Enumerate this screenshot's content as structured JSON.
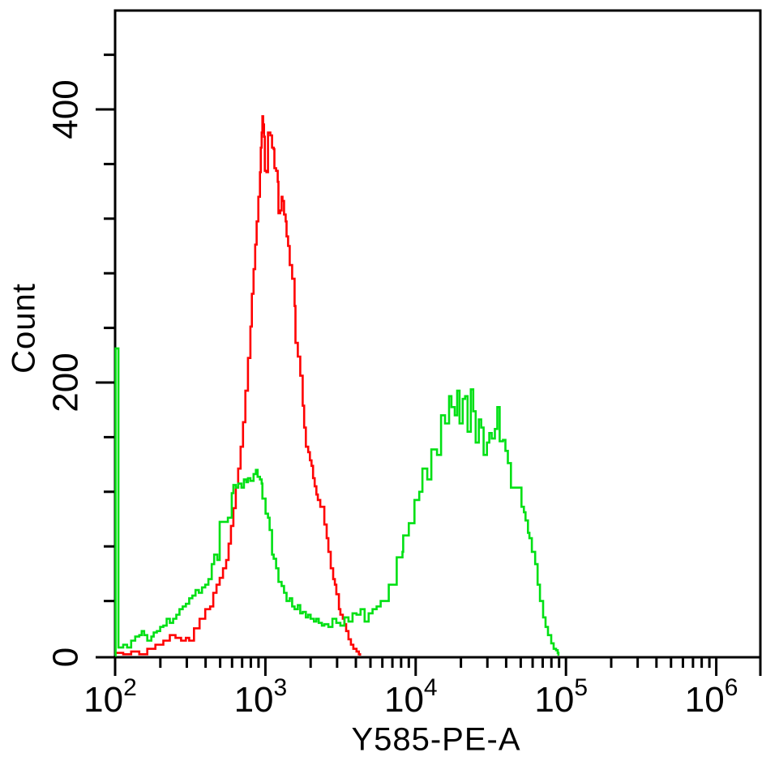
{
  "canvas": {
    "background": "#ffffff",
    "axis_color": "#000000"
  },
  "chart_data": {
    "type": "line",
    "subtype": "flow-cytometry-histogram-overlay",
    "title": "",
    "xlabel": "Y585-PE-A",
    "ylabel": "Count",
    "x_scale": "log10",
    "x_range_log": [
      2,
      6.3
    ],
    "ylim": [
      0,
      472
    ],
    "grid": false,
    "legend": "none",
    "x_major_ticks": [
      {
        "log": 2,
        "base": "10",
        "exp": "2"
      },
      {
        "log": 3,
        "base": "10",
        "exp": "3"
      },
      {
        "log": 4,
        "base": "10",
        "exp": "4"
      },
      {
        "log": 5,
        "base": "10",
        "exp": "5"
      },
      {
        "log": 6,
        "base": "10",
        "exp": "6"
      }
    ],
    "x_minor_ticks_per_decade": [
      2,
      3,
      4,
      5,
      6,
      7,
      8,
      9
    ],
    "y_major_ticks": [
      {
        "count": 0,
        "label": "0"
      },
      {
        "count": 200,
        "label": "200"
      },
      {
        "count": 400,
        "label": "400"
      }
    ],
    "y_minor_step": 40,
    "y_minor_max": 440,
    "series": [
      {
        "name": "red",
        "color": "#ff0000",
        "points": [
          [
            2.0,
            2
          ],
          [
            2.054,
            1
          ],
          [
            2.107,
            3
          ],
          [
            2.161,
            1
          ],
          [
            2.214,
            5
          ],
          [
            2.268,
            8
          ],
          [
            2.321,
            11
          ],
          [
            2.364,
            15
          ],
          [
            2.402,
            13
          ],
          [
            2.439,
            11
          ],
          [
            2.471,
            13
          ],
          [
            2.493,
            11
          ],
          [
            2.525,
            20
          ],
          [
            2.562,
            27
          ],
          [
            2.6,
            34
          ],
          [
            2.632,
            36
          ],
          [
            2.653,
            46
          ],
          [
            2.675,
            52
          ],
          [
            2.696,
            57
          ],
          [
            2.718,
            64
          ],
          [
            2.739,
            70
          ],
          [
            2.755,
            82
          ],
          [
            2.771,
            95
          ],
          [
            2.787,
            108
          ],
          [
            2.803,
            123
          ],
          [
            2.819,
            137
          ],
          [
            2.835,
            153
          ],
          [
            2.851,
            171
          ],
          [
            2.867,
            194
          ],
          [
            2.884,
            218
          ],
          [
            2.9,
            241
          ],
          [
            2.91,
            265
          ],
          [
            2.921,
            283
          ],
          [
            2.932,
            301
          ],
          [
            2.942,
            318
          ],
          [
            2.953,
            336
          ],
          [
            2.964,
            354
          ],
          [
            2.969,
            372
          ],
          [
            2.975,
            383
          ],
          [
            2.98,
            395
          ],
          [
            2.985,
            389
          ],
          [
            2.991,
            380
          ],
          [
            2.996,
            355
          ],
          [
            3.007,
            354
          ],
          [
            3.017,
            383
          ],
          [
            3.033,
            381
          ],
          [
            3.044,
            372
          ],
          [
            3.055,
            371
          ],
          [
            3.06,
            357
          ],
          [
            3.071,
            355
          ],
          [
            3.082,
            347
          ],
          [
            3.087,
            324
          ],
          [
            3.098,
            326
          ],
          [
            3.108,
            336
          ],
          [
            3.114,
            333
          ],
          [
            3.124,
            323
          ],
          [
            3.135,
            318
          ],
          [
            3.141,
            307
          ],
          [
            3.151,
            300
          ],
          [
            3.162,
            286
          ],
          [
            3.178,
            276
          ],
          [
            3.194,
            256
          ],
          [
            3.2,
            229
          ],
          [
            3.216,
            219
          ],
          [
            3.232,
            205
          ],
          [
            3.248,
            183
          ],
          [
            3.258,
            167
          ],
          [
            3.269,
            153
          ],
          [
            3.285,
            149
          ],
          [
            3.296,
            143
          ],
          [
            3.307,
            139
          ],
          [
            3.317,
            130
          ],
          [
            3.328,
            124
          ],
          [
            3.339,
            118
          ],
          [
            3.349,
            114
          ],
          [
            3.365,
            109
          ],
          [
            3.392,
            96
          ],
          [
            3.408,
            86
          ],
          [
            3.419,
            76
          ],
          [
            3.435,
            64
          ],
          [
            3.451,
            56
          ],
          [
            3.462,
            52
          ],
          [
            3.472,
            45
          ],
          [
            3.489,
            34
          ],
          [
            3.499,
            30
          ],
          [
            3.515,
            27
          ],
          [
            3.526,
            23
          ],
          [
            3.537,
            18
          ],
          [
            3.553,
            12
          ],
          [
            3.569,
            8
          ],
          [
            3.585,
            5
          ],
          [
            3.606,
            3
          ],
          [
            3.622,
            1
          ],
          [
            3.63,
            0
          ]
        ]
      },
      {
        "name": "green",
        "color": "#00e014",
        "points": [
          [
            2.0,
            0
          ],
          [
            2.003,
            225
          ],
          [
            2.016,
            225
          ],
          [
            2.022,
            6
          ],
          [
            2.027,
            6
          ],
          [
            2.054,
            8
          ],
          [
            2.08,
            6
          ],
          [
            2.107,
            11
          ],
          [
            2.134,
            14
          ],
          [
            2.161,
            15
          ],
          [
            2.177,
            18
          ],
          [
            2.193,
            15
          ],
          [
            2.214,
            11
          ],
          [
            2.241,
            14
          ],
          [
            2.257,
            17
          ],
          [
            2.278,
            18
          ],
          [
            2.3,
            21
          ],
          [
            2.321,
            22
          ],
          [
            2.343,
            27
          ],
          [
            2.364,
            24
          ],
          [
            2.386,
            27
          ],
          [
            2.407,
            30
          ],
          [
            2.428,
            34
          ],
          [
            2.45,
            36
          ],
          [
            2.471,
            38
          ],
          [
            2.493,
            42
          ],
          [
            2.514,
            44
          ],
          [
            2.535,
            48
          ],
          [
            2.557,
            46
          ],
          [
            2.578,
            50
          ],
          [
            2.6,
            52
          ],
          [
            2.621,
            56
          ],
          [
            2.643,
            67
          ],
          [
            2.659,
            74
          ],
          [
            2.68,
            70
          ],
          [
            2.696,
            98
          ],
          [
            2.712,
            98
          ],
          [
            2.734,
            98
          ],
          [
            2.75,
            101
          ],
          [
            2.766,
            101
          ],
          [
            2.776,
            119
          ],
          [
            2.787,
            125
          ],
          [
            2.803,
            123
          ],
          [
            2.819,
            126
          ],
          [
            2.841,
            123
          ],
          [
            2.857,
            129
          ],
          [
            2.873,
            127
          ],
          [
            2.884,
            130
          ],
          [
            2.9,
            128
          ],
          [
            2.921,
            133
          ],
          [
            2.937,
            136
          ],
          [
            2.948,
            131
          ],
          [
            2.964,
            129
          ],
          [
            2.975,
            126
          ],
          [
            2.98,
            115
          ],
          [
            3.001,
            104
          ],
          [
            3.017,
            101
          ],
          [
            3.028,
            92
          ],
          [
            3.044,
            74
          ],
          [
            3.055,
            71
          ],
          [
            3.071,
            64
          ],
          [
            3.087,
            54
          ],
          [
            3.108,
            51
          ],
          [
            3.124,
            46
          ],
          [
            3.141,
            40
          ],
          [
            3.162,
            42
          ],
          [
            3.178,
            36
          ],
          [
            3.194,
            34
          ],
          [
            3.216,
            37
          ],
          [
            3.232,
            31
          ],
          [
            3.248,
            32
          ],
          [
            3.269,
            28
          ],
          [
            3.285,
            30
          ],
          [
            3.301,
            27
          ],
          [
            3.323,
            25
          ],
          [
            3.339,
            27
          ],
          [
            3.355,
            24
          ],
          [
            3.376,
            22
          ],
          [
            3.392,
            23
          ],
          [
            3.419,
            21
          ],
          [
            3.446,
            27
          ],
          [
            3.472,
            24
          ],
          [
            3.499,
            22
          ],
          [
            3.526,
            28
          ],
          [
            3.553,
            25
          ],
          [
            3.58,
            31
          ],
          [
            3.606,
            30
          ],
          [
            3.633,
            34
          ],
          [
            3.66,
            25
          ],
          [
            3.687,
            31
          ],
          [
            3.713,
            34
          ],
          [
            3.74,
            36
          ],
          [
            3.767,
            40
          ],
          [
            3.821,
            52
          ],
          [
            3.874,
            72
          ],
          [
            3.912,
            76
          ],
          [
            3.917,
            88
          ],
          [
            3.954,
            97
          ],
          [
            3.992,
            114
          ],
          [
            4.024,
            120
          ],
          [
            4.045,
            137
          ],
          [
            4.077,
            129
          ],
          [
            4.104,
            151
          ],
          [
            4.142,
            147
          ],
          [
            4.169,
            176
          ],
          [
            4.195,
            170
          ],
          [
            4.222,
            190
          ],
          [
            4.238,
            182
          ],
          [
            4.26,
            176
          ],
          [
            4.276,
            194
          ],
          [
            4.292,
            170
          ],
          [
            4.313,
            188
          ],
          [
            4.329,
            190
          ],
          [
            4.345,
            164
          ],
          [
            4.367,
            195
          ],
          [
            4.383,
            179
          ],
          [
            4.399,
            156
          ],
          [
            4.42,
            173
          ],
          [
            4.436,
            167
          ],
          [
            4.452,
            147
          ],
          [
            4.474,
            156
          ],
          [
            4.49,
            163
          ],
          [
            4.506,
            159
          ],
          [
            4.527,
            166
          ],
          [
            4.543,
            182
          ],
          [
            4.559,
            157
          ],
          [
            4.581,
            158
          ],
          [
            4.597,
            150
          ],
          [
            4.613,
            141
          ],
          [
            4.634,
            123
          ],
          [
            4.666,
            123
          ],
          [
            4.704,
            109
          ],
          [
            4.72,
            105
          ],
          [
            4.731,
            99
          ],
          [
            4.747,
            90
          ],
          [
            4.757,
            86
          ],
          [
            4.773,
            76
          ],
          [
            4.795,
            67
          ],
          [
            4.811,
            52
          ],
          [
            4.827,
            40
          ],
          [
            4.848,
            28
          ],
          [
            4.864,
            21
          ],
          [
            4.88,
            15
          ],
          [
            4.902,
            9
          ],
          [
            4.918,
            5
          ],
          [
            4.934,
            4
          ],
          [
            4.945,
            2
          ],
          [
            4.95,
            0
          ]
        ]
      }
    ]
  }
}
